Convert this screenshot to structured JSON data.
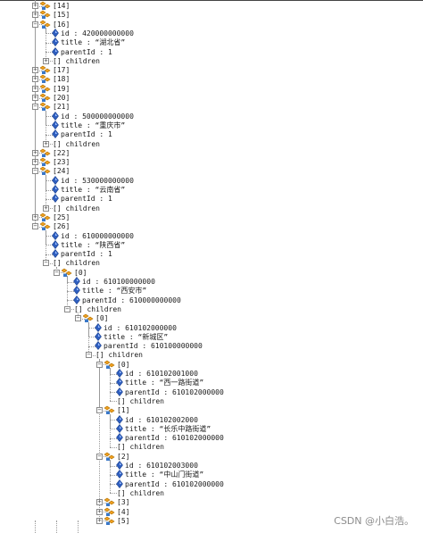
{
  "tree": [
    {
      "t": "a",
      "k": "[14]",
      "d": 0,
      "c": true
    },
    {
      "t": "a",
      "k": "[15]",
      "d": 0,
      "c": true
    },
    {
      "t": "a",
      "k": "[16]",
      "d": 0,
      "c": false
    },
    {
      "t": "v",
      "k": "id",
      "v": "420000000000",
      "d": 1
    },
    {
      "t": "v",
      "k": "title",
      "v": "“湖北省”",
      "d": 1
    },
    {
      "t": "v",
      "k": "parentId",
      "v": "1",
      "d": 1
    },
    {
      "t": "b",
      "k": "children",
      "d": 1,
      "c": true
    },
    {
      "t": "a",
      "k": "[17]",
      "d": 0,
      "c": true
    },
    {
      "t": "a",
      "k": "[18]",
      "d": 0,
      "c": true
    },
    {
      "t": "a",
      "k": "[19]",
      "d": 0,
      "c": true
    },
    {
      "t": "a",
      "k": "[20]",
      "d": 0,
      "c": true
    },
    {
      "t": "a",
      "k": "[21]",
      "d": 0,
      "c": false
    },
    {
      "t": "v",
      "k": "id",
      "v": "500000000000",
      "d": 1
    },
    {
      "t": "v",
      "k": "title",
      "v": "“重庆市”",
      "d": 1
    },
    {
      "t": "v",
      "k": "parentId",
      "v": "1",
      "d": 1
    },
    {
      "t": "b",
      "k": "children",
      "d": 1,
      "c": true
    },
    {
      "t": "a",
      "k": "[22]",
      "d": 0,
      "c": true
    },
    {
      "t": "a",
      "k": "[23]",
      "d": 0,
      "c": true
    },
    {
      "t": "a",
      "k": "[24]",
      "d": 0,
      "c": false
    },
    {
      "t": "v",
      "k": "id",
      "v": "530000000000",
      "d": 1
    },
    {
      "t": "v",
      "k": "title",
      "v": "“云南省”",
      "d": 1
    },
    {
      "t": "v",
      "k": "parentId",
      "v": "1",
      "d": 1
    },
    {
      "t": "b",
      "k": "children",
      "d": 1,
      "c": true
    },
    {
      "t": "a",
      "k": "[25]",
      "d": 0,
      "c": true
    },
    {
      "t": "a",
      "k": "[26]",
      "d": 0,
      "c": false
    },
    {
      "t": "v",
      "k": "id",
      "v": "610000000000",
      "d": 1
    },
    {
      "t": "v",
      "k": "title",
      "v": "“陕西省”",
      "d": 1
    },
    {
      "t": "v",
      "k": "parentId",
      "v": "1",
      "d": 1
    },
    {
      "t": "b",
      "k": "children",
      "d": 1,
      "c": false
    },
    {
      "t": "a",
      "k": "[0]",
      "d": 2,
      "c": false
    },
    {
      "t": "v",
      "k": "id",
      "v": "610100000000",
      "d": 3
    },
    {
      "t": "v",
      "k": "title",
      "v": "“西安市”",
      "d": 3
    },
    {
      "t": "v",
      "k": "parentId",
      "v": "610000000000",
      "d": 3
    },
    {
      "t": "b",
      "k": "children",
      "d": 3,
      "c": false
    },
    {
      "t": "a",
      "k": "[0]",
      "d": 4,
      "c": false
    },
    {
      "t": "v",
      "k": "id",
      "v": "610102000000",
      "d": 5
    },
    {
      "t": "v",
      "k": "title",
      "v": "“新城区”",
      "d": 5
    },
    {
      "t": "v",
      "k": "parentId",
      "v": "610100000000",
      "d": 5
    },
    {
      "t": "b",
      "k": "children",
      "d": 5,
      "c": false
    },
    {
      "t": "a",
      "k": "[0]",
      "d": 6,
      "c": false
    },
    {
      "t": "v",
      "k": "id",
      "v": "610102001000",
      "d": 7
    },
    {
      "t": "v",
      "k": "title",
      "v": "“西一路街道”",
      "d": 7
    },
    {
      "t": "v",
      "k": "parentId",
      "v": "610102000000",
      "d": 7
    },
    {
      "t": "b",
      "k": "children",
      "d": 7,
      "c": null
    },
    {
      "t": "a",
      "k": "[1]",
      "d": 6,
      "c": false
    },
    {
      "t": "v",
      "k": "id",
      "v": "610102002000",
      "d": 7
    },
    {
      "t": "v",
      "k": "title",
      "v": "“长乐中路街道”",
      "d": 7
    },
    {
      "t": "v",
      "k": "parentId",
      "v": "610102000000",
      "d": 7
    },
    {
      "t": "b",
      "k": "children",
      "d": 7,
      "c": null
    },
    {
      "t": "a",
      "k": "[2]",
      "d": 6,
      "c": false
    },
    {
      "t": "v",
      "k": "id",
      "v": "610102003000",
      "d": 7
    },
    {
      "t": "v",
      "k": "title",
      "v": "“中山门街道”",
      "d": 7
    },
    {
      "t": "v",
      "k": "parentId",
      "v": "610102000000",
      "d": 7
    },
    {
      "t": "b",
      "k": "children",
      "d": 7,
      "c": null
    },
    {
      "t": "a",
      "k": "[3]",
      "d": 6,
      "c": true
    },
    {
      "t": "a",
      "k": "[4]",
      "d": 6,
      "c": true
    },
    {
      "t": "a",
      "k": "[5]",
      "d": 6,
      "c": true
    }
  ],
  "watermark": "CSDN @小白浩。",
  "colors": {
    "object_icon": "#f0a020",
    "object_icon_accent": "#3a78c8",
    "property_icon": "#2f5fc0",
    "tree_line": "#9a9a9a"
  },
  "icons": {
    "object": "object-node-icon",
    "property": "property-diamond-icon"
  }
}
